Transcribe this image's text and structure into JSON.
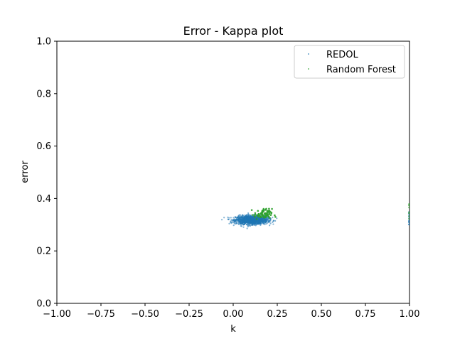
{
  "chart_data": {
    "type": "scatter",
    "title": "Error - Kappa plot",
    "xlabel": "k",
    "ylabel": "error",
    "xlim": [
      -1.0,
      1.0
    ],
    "ylim": [
      0.0,
      1.0
    ],
    "xticks": [
      -1.0,
      -0.75,
      -0.5,
      -0.25,
      0.0,
      0.25,
      0.5,
      0.75,
      1.0
    ],
    "xtick_labels": [
      "−1.00",
      "−0.75",
      "−0.50",
      "−0.25",
      "0.00",
      "0.25",
      "0.50",
      "0.75",
      "1.00"
    ],
    "yticks": [
      0.0,
      0.2,
      0.4,
      0.6,
      0.8,
      1.0
    ],
    "ytick_labels": [
      "0.0",
      "0.2",
      "0.4",
      "0.6",
      "0.8",
      "1.0"
    ],
    "grid": false,
    "legend_position": "top-right",
    "series": [
      {
        "name": "REDOL",
        "color": "#1f77b4",
        "cluster": {
          "x_center": 0.105,
          "y_center": 0.318,
          "x_spread": 0.045,
          "y_spread": 0.008,
          "count": 1500
        },
        "edge_points": {
          "x": 1.0,
          "y_range": [
            0.3,
            0.35
          ],
          "count": 20
        }
      },
      {
        "name": "Random Forest",
        "color": "#2ca02c",
        "cluster": {
          "x_center": 0.17,
          "y_center": 0.34,
          "x_spread": 0.025,
          "y_spread": 0.01,
          "count": 80
        },
        "edge_points": {
          "x": 1.0,
          "y_range": [
            0.32,
            0.38
          ],
          "count": 8
        }
      }
    ]
  }
}
